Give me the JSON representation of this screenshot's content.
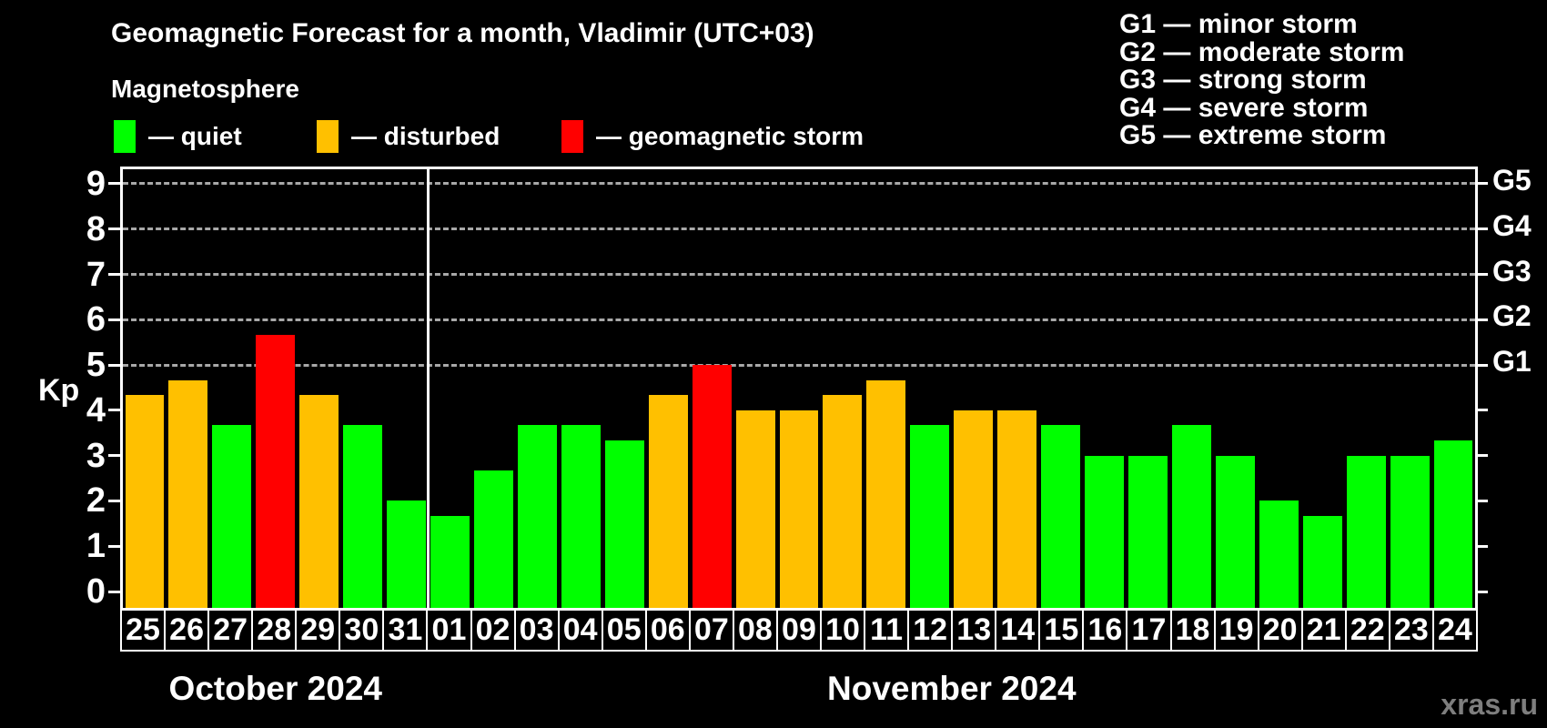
{
  "header": {
    "title": "Geomagnetic Forecast for a month, Vladimir (UTC+03)",
    "subtitle": "Magnetosphere",
    "legend": [
      {
        "name": "quiet",
        "label": "— quiet",
        "color": "#00ff00"
      },
      {
        "name": "disturbed",
        "label": "— disturbed",
        "color": "#ffc000"
      },
      {
        "name": "storm",
        "label": "— geomagnetic storm",
        "color": "#ff0000"
      }
    ],
    "g_legend": [
      "G1 — minor storm",
      "G2 — moderate storm",
      "G3 — strong storm",
      "G4 — severe storm",
      "G5 — extreme storm"
    ]
  },
  "chart_data": {
    "type": "bar",
    "title": "Geomagnetic Forecast for a month, Vladimir (UTC+03)",
    "ylabel": "Kp",
    "ylim": [
      -0.36,
      9.43
    ],
    "y_ticks": [
      0,
      1,
      2,
      3,
      4,
      5,
      6,
      7,
      8,
      9
    ],
    "grid_levels": [
      5,
      6,
      7,
      8,
      9
    ],
    "right_axis_labels": [
      {
        "kp": 5,
        "label": "G1"
      },
      {
        "kp": 6,
        "label": "G2"
      },
      {
        "kp": 7,
        "label": "G3"
      },
      {
        "kp": 8,
        "label": "G4"
      },
      {
        "kp": 9,
        "label": "G5"
      }
    ],
    "months": [
      {
        "label": "October 2024",
        "days": 7
      },
      {
        "label": "November 2024",
        "days": 24
      }
    ],
    "colors": {
      "quiet": "#00ff00",
      "disturbed": "#ffc000",
      "storm": "#ff0000"
    },
    "bars": [
      {
        "day": "25",
        "kp": 4.33,
        "status": "disturbed"
      },
      {
        "day": "26",
        "kp": 4.67,
        "status": "disturbed"
      },
      {
        "day": "27",
        "kp": 3.67,
        "status": "quiet"
      },
      {
        "day": "28",
        "kp": 5.67,
        "status": "storm"
      },
      {
        "day": "29",
        "kp": 4.33,
        "status": "disturbed"
      },
      {
        "day": "30",
        "kp": 3.67,
        "status": "quiet"
      },
      {
        "day": "31",
        "kp": 2.0,
        "status": "quiet"
      },
      {
        "day": "01",
        "kp": 1.67,
        "status": "quiet"
      },
      {
        "day": "02",
        "kp": 2.67,
        "status": "quiet"
      },
      {
        "day": "03",
        "kp": 3.67,
        "status": "quiet"
      },
      {
        "day": "04",
        "kp": 3.67,
        "status": "quiet"
      },
      {
        "day": "05",
        "kp": 3.33,
        "status": "quiet"
      },
      {
        "day": "06",
        "kp": 4.33,
        "status": "disturbed"
      },
      {
        "day": "07",
        "kp": 5.0,
        "status": "storm"
      },
      {
        "day": "08",
        "kp": 4.0,
        "status": "disturbed"
      },
      {
        "day": "09",
        "kp": 4.0,
        "status": "disturbed"
      },
      {
        "day": "10",
        "kp": 4.33,
        "status": "disturbed"
      },
      {
        "day": "11",
        "kp": 4.67,
        "status": "disturbed"
      },
      {
        "day": "12",
        "kp": 3.67,
        "status": "quiet"
      },
      {
        "day": "13",
        "kp": 4.0,
        "status": "disturbed"
      },
      {
        "day": "14",
        "kp": 4.0,
        "status": "disturbed"
      },
      {
        "day": "15",
        "kp": 3.67,
        "status": "quiet"
      },
      {
        "day": "16",
        "kp": 3.0,
        "status": "quiet"
      },
      {
        "day": "17",
        "kp": 3.0,
        "status": "quiet"
      },
      {
        "day": "18",
        "kp": 3.67,
        "status": "quiet"
      },
      {
        "day": "19",
        "kp": 3.0,
        "status": "quiet"
      },
      {
        "day": "20",
        "kp": 2.0,
        "status": "quiet"
      },
      {
        "day": "21",
        "kp": 1.67,
        "status": "quiet"
      },
      {
        "day": "22",
        "kp": 3.0,
        "status": "quiet"
      },
      {
        "day": "23",
        "kp": 3.0,
        "status": "quiet"
      },
      {
        "day": "24",
        "kp": 3.33,
        "status": "quiet"
      }
    ]
  },
  "footer": {
    "watermark": "xras.ru"
  }
}
